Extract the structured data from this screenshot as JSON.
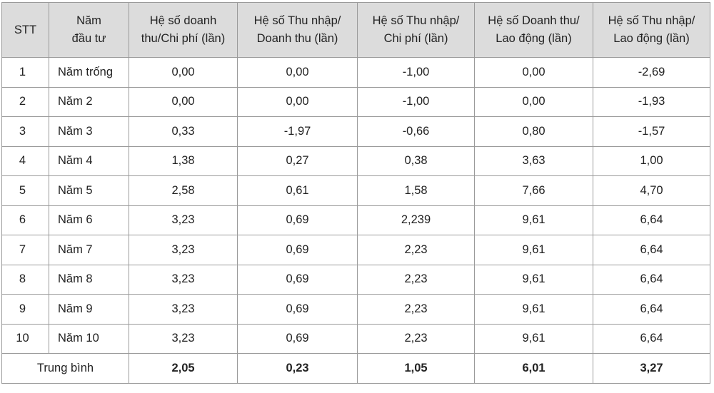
{
  "table": {
    "headers": [
      [
        "STT"
      ],
      [
        "Năm",
        "đầu tư"
      ],
      [
        "Hệ số doanh",
        "thu/Chi phí (lần)"
      ],
      [
        "Hệ số Thu nhập/",
        "Doanh thu (lần)"
      ],
      [
        "Hệ số Thu nhập/",
        "Chi phí (lần)"
      ],
      [
        "Hệ số Doanh thu/",
        "Lao động (lần)"
      ],
      [
        "Hệ số Thu nhập/",
        "Lao động (lần)"
      ]
    ],
    "rows": [
      [
        "1",
        "Năm trống",
        "0,00",
        "0,00",
        "-1,00",
        "0,00",
        "-2,69"
      ],
      [
        "2",
        "Năm 2",
        "0,00",
        "0,00",
        "-1,00",
        "0,00",
        "-1,93"
      ],
      [
        "3",
        "Năm 3",
        "0,33",
        "-1,97",
        "-0,66",
        "0,80",
        "-1,57"
      ],
      [
        "4",
        "Năm 4",
        "1,38",
        "0,27",
        "0,38",
        "3,63",
        "1,00"
      ],
      [
        "5",
        "Năm 5",
        "2,58",
        "0,61",
        "1,58",
        "7,66",
        "4,70"
      ],
      [
        "6",
        "Năm 6",
        "3,23",
        "0,69",
        "2,239",
        "9,61",
        "6,64"
      ],
      [
        "7",
        "Năm 7",
        "3,23",
        "0,69",
        "2,23",
        "9,61",
        "6,64"
      ],
      [
        "8",
        "Năm 8",
        "3,23",
        "0,69",
        "2,23",
        "9,61",
        "6,64"
      ],
      [
        "9",
        "Năm 9",
        "3,23",
        "0,69",
        "2,23",
        "9,61",
        "6,64"
      ],
      [
        "10",
        "Năm 10",
        "3,23",
        "0,69",
        "2,23",
        "9,61",
        "6,64"
      ]
    ],
    "average": {
      "label": "Trung bình",
      "values": [
        "2,05",
        "0,23",
        "1,05",
        "6,01",
        "3,27"
      ]
    }
  }
}
